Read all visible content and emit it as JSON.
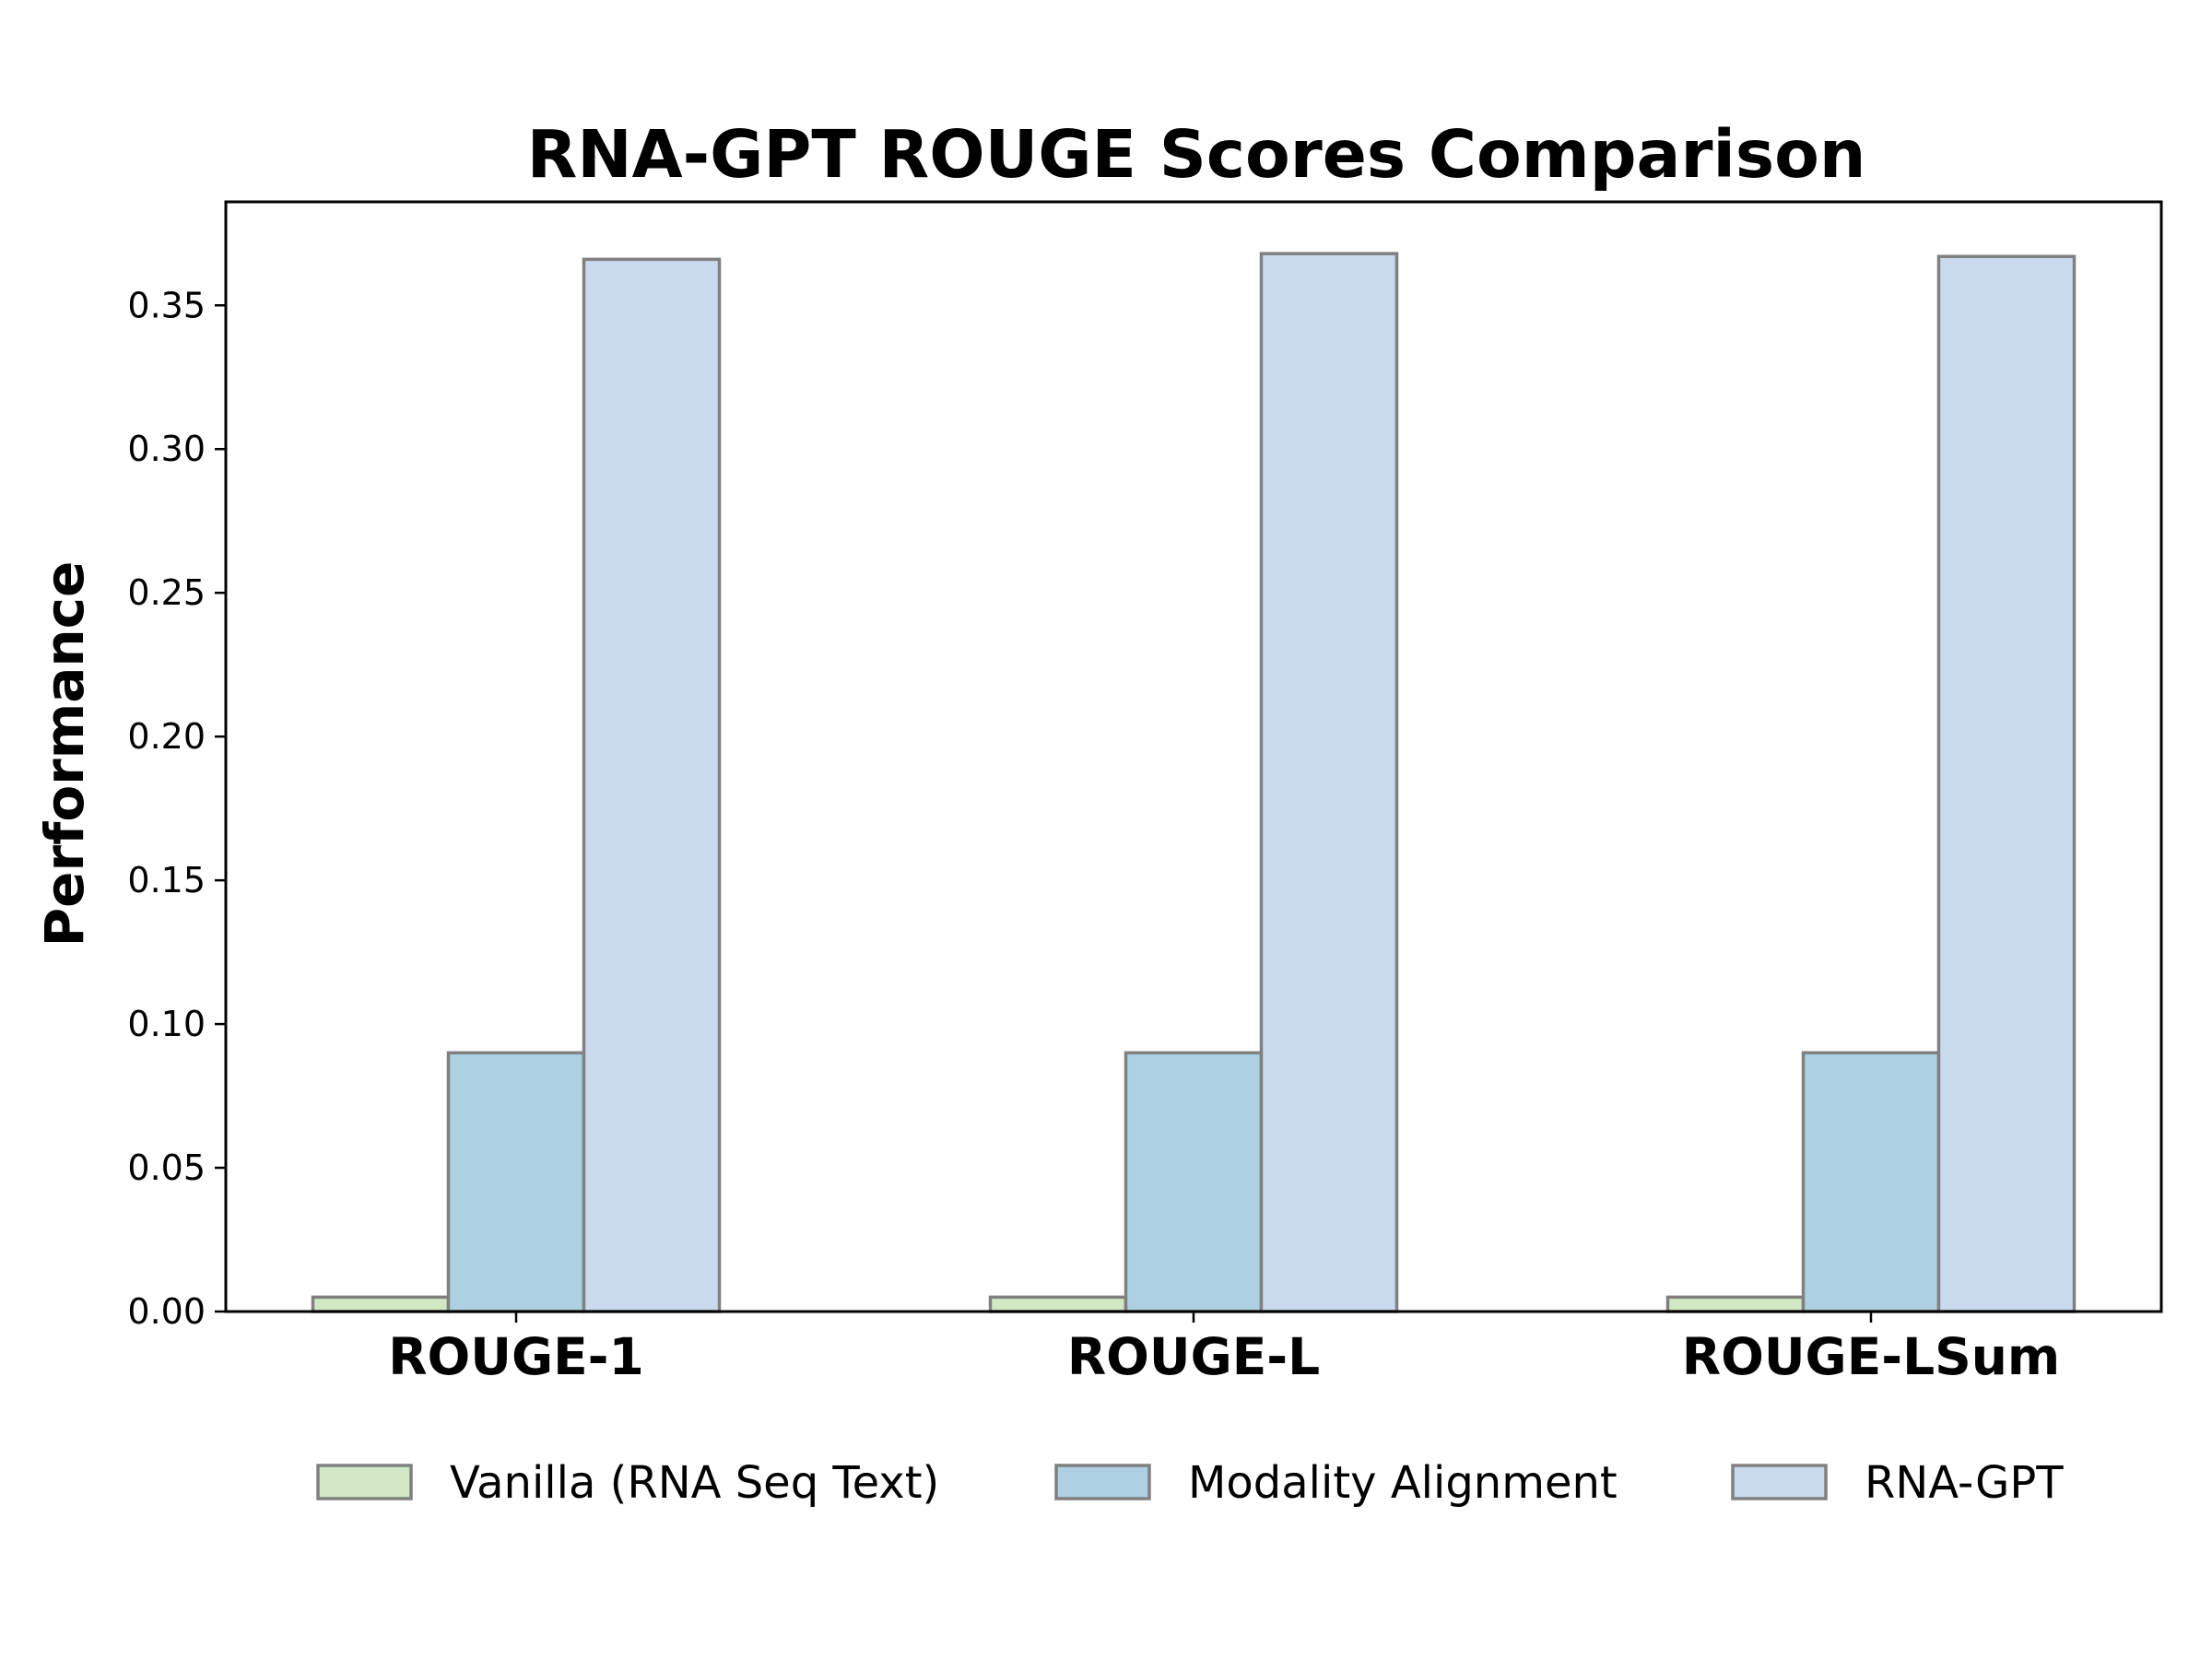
{
  "chart_data": {
    "type": "bar",
    "title": "RNA-GPT ROUGE Scores Comparison",
    "xlabel": "",
    "ylabel": "Performance",
    "categories": [
      "ROUGE-1",
      "ROUGE-L",
      "ROUGE-LSum"
    ],
    "series": [
      {
        "name": "Vanilla (RNA Seq Text)",
        "color": "#d2e8c4",
        "values": [
          0.005,
          0.005,
          0.005
        ]
      },
      {
        "name": "Modality Alignment",
        "color": "#aed0e3",
        "values": [
          0.09,
          0.09,
          0.09
        ]
      },
      {
        "name": "RNA-GPT",
        "color": "#cbd9ef",
        "values": [
          0.366,
          0.368,
          0.367
        ]
      }
    ],
    "ylim": [
      0,
      0.386
    ],
    "yticks": [
      "0.00",
      "0.05",
      "0.10",
      "0.15",
      "0.20",
      "0.25",
      "0.30",
      "0.35"
    ],
    "grid": false,
    "legend_position": "bottom-center"
  }
}
